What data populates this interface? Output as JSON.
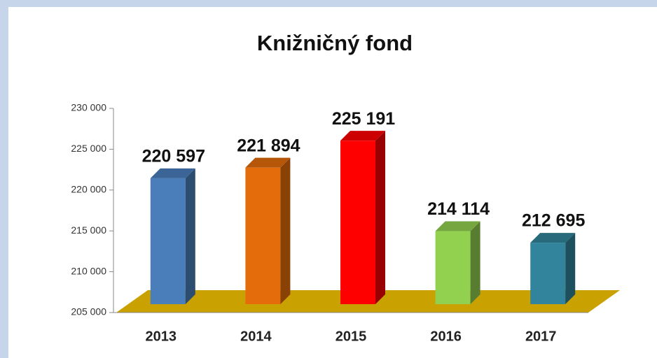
{
  "chart_data": {
    "type": "bar3d",
    "title": "Knižničný fond",
    "categories": [
      "2013",
      "2014",
      "2015",
      "2016",
      "2017"
    ],
    "values": [
      220597,
      221894,
      225191,
      214114,
      212695
    ],
    "value_labels": [
      "220 597",
      "221 894",
      "225 191",
      "214 114",
      "212 695"
    ],
    "colors": [
      "#4a7ebb",
      "#e46c0a",
      "#ff0000",
      "#92d050",
      "#31849b"
    ],
    "ylim": [
      205000,
      230000
    ],
    "yticks": [
      {
        "value": 205000,
        "label": "205 000"
      },
      {
        "value": 210000,
        "label": "210 000"
      },
      {
        "value": 215000,
        "label": "215 000"
      },
      {
        "value": 220000,
        "label": "220 000"
      },
      {
        "value": 225000,
        "label": "225 000"
      },
      {
        "value": 230000,
        "label": "230 000"
      }
    ],
    "floor_color": "#c9a100"
  }
}
